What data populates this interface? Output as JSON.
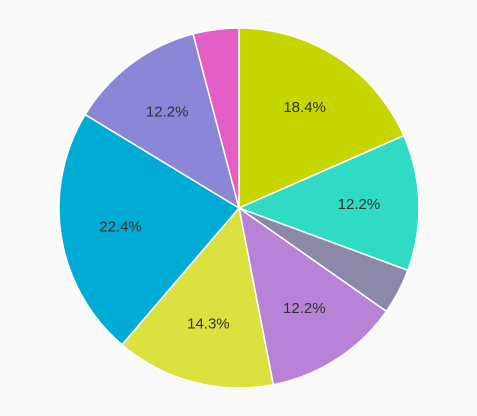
{
  "chart_data": {
    "type": "pie",
    "title": "",
    "start_angle_deg": 0,
    "direction": "clockwise",
    "legend": "none",
    "slices": [
      {
        "value": 18.4,
        "label": "18.4%",
        "color": "#c5d600"
      },
      {
        "value": 12.2,
        "label": "12.2%",
        "color": "#30dbc6"
      },
      {
        "value": 4.1,
        "label": "",
        "color": "#8c89a8"
      },
      {
        "value": 12.2,
        "label": "12.2%",
        "color": "#b882d6"
      },
      {
        "value": 14.3,
        "label": "14.3%",
        "color": "#dbe23f"
      },
      {
        "value": 22.4,
        "label": "22.4%",
        "color": "#00abd6"
      },
      {
        "value": 12.2,
        "label": "12.2%",
        "color": "#8b86d8"
      },
      {
        "value": 4.1,
        "label": "",
        "color": "#e35fc5"
      }
    ]
  }
}
